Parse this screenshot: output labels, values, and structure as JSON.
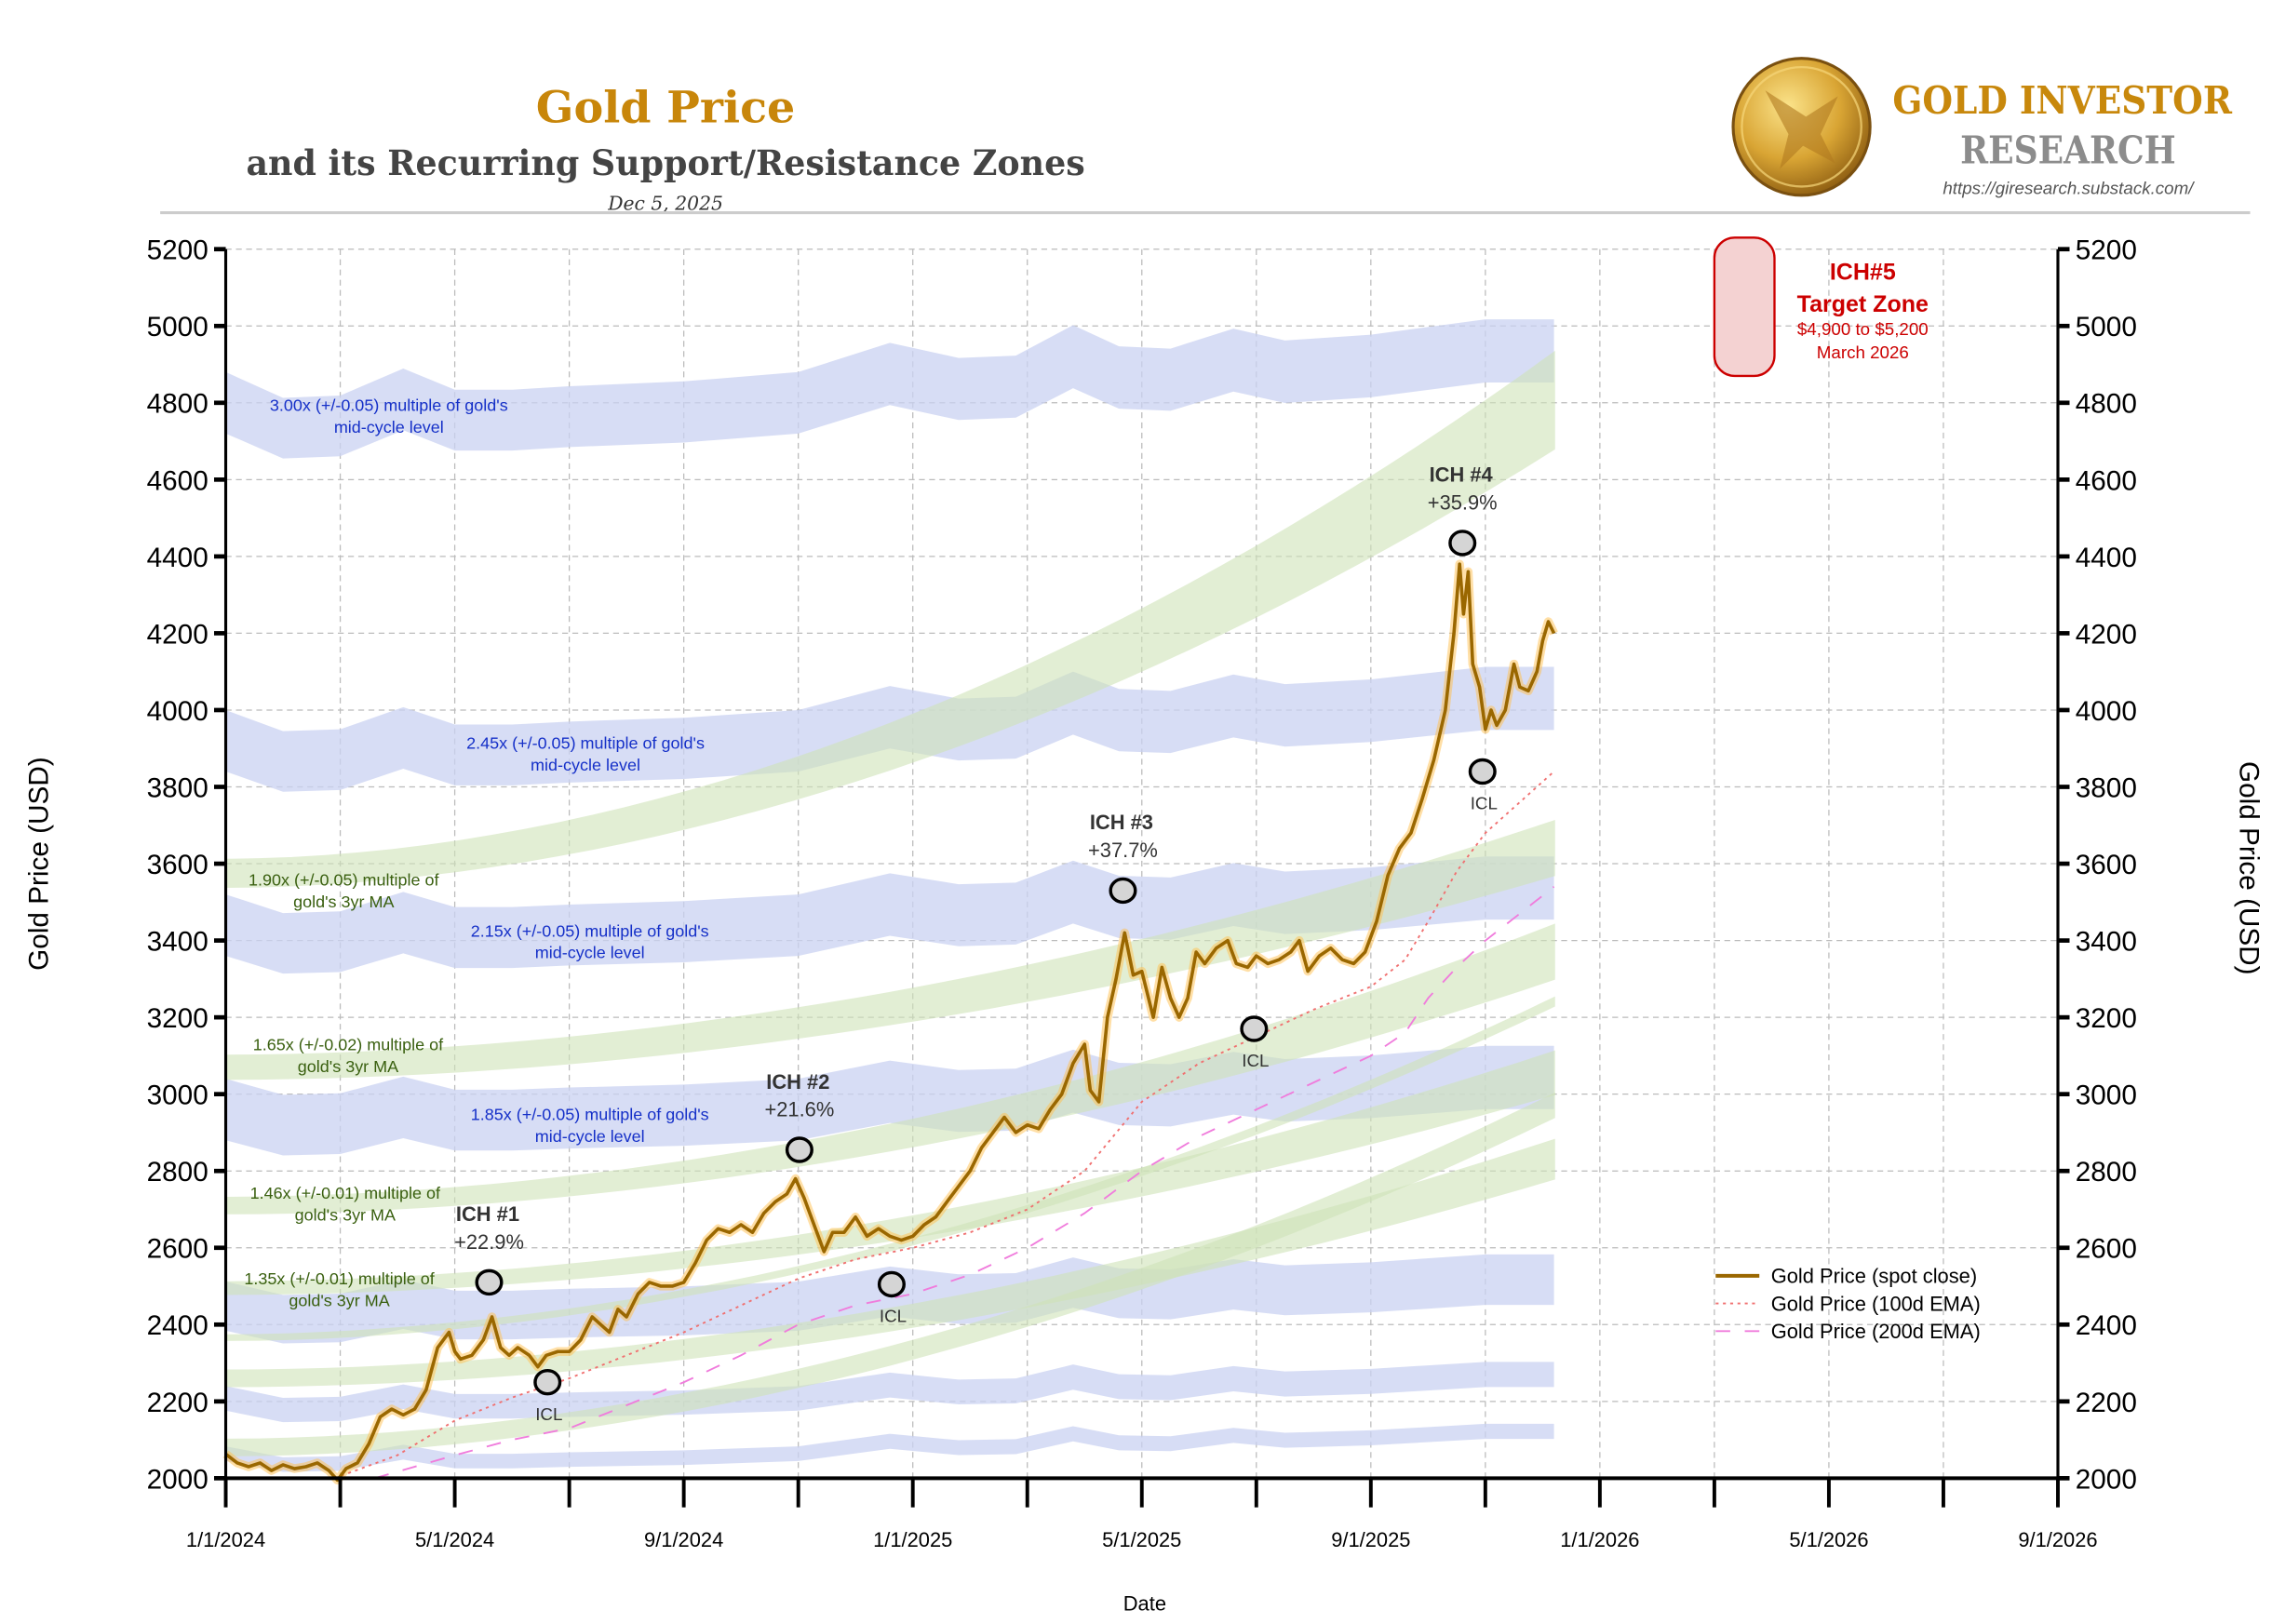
{
  "header": {
    "title": "Gold Price",
    "subtitle": "and its Recurring Support/Resistance Zones",
    "date": "Dec 5, 2025",
    "brand_line1": "GOLD INVESTOR",
    "brand_line2": "RESEARCH",
    "brand_url": "https://giresearch.substack.com/",
    "logo_icon": "gold-eagle-coin-icon"
  },
  "colors": {
    "title": "#C8860A",
    "subtitle": "#444444",
    "price": "#9A6700",
    "price_range": "#FFC04D",
    "ema100": "#F07070",
    "ema200": "#F07CDC",
    "blue_band": "#C9D2F2",
    "green_band": "#CFE3B8",
    "blue_label": "#1530C8",
    "green_label": "#3A6010",
    "target": "#CC0000"
  },
  "chart_data": {
    "type": "line",
    "xlabel": "Date",
    "ylabel_left": "Gold Price (USD)",
    "ylabel_right": "Gold Price (USD)",
    "x_unit": "months since 1/1/2024",
    "xlim": [
      0,
      32
    ],
    "ylim": [
      2000,
      5200
    ],
    "grid": true,
    "legend_position": "lower-right",
    "yticks": [
      2000,
      2200,
      2400,
      2600,
      2800,
      3000,
      3200,
      3400,
      3600,
      3800,
      4000,
      4200,
      4400,
      4600,
      4800,
      5000,
      5200
    ],
    "xtick_labels": [
      {
        "m": 0,
        "label": "1/1/2024"
      },
      {
        "m": 4,
        "label": "5/1/2024"
      },
      {
        "m": 8,
        "label": "9/1/2024"
      },
      {
        "m": 12,
        "label": "1/1/2025"
      },
      {
        "m": 16,
        "label": "5/1/2025"
      },
      {
        "m": 20,
        "label": "9/1/2025"
      },
      {
        "m": 24,
        "label": "1/1/2026"
      },
      {
        "m": 28,
        "label": "5/1/2026"
      },
      {
        "m": 32,
        "label": "9/1/2026"
      }
    ],
    "legend": [
      "Gold Price (spot close)",
      "Gold Price (100d EMA)",
      "Gold Price (200d EMA)"
    ],
    "series": [
      {
        "name": "Gold Price (spot close)",
        "points": [
          [
            0,
            2063
          ],
          [
            0.2,
            2040
          ],
          [
            0.4,
            2030
          ],
          [
            0.6,
            2040
          ],
          [
            0.8,
            2020
          ],
          [
            1.0,
            2035
          ],
          [
            1.2,
            2025
          ],
          [
            1.4,
            2030
          ],
          [
            1.6,
            2040
          ],
          [
            1.8,
            2020
          ],
          [
            1.95,
            1995
          ],
          [
            2.1,
            2025
          ],
          [
            2.3,
            2040
          ],
          [
            2.5,
            2090
          ],
          [
            2.7,
            2160
          ],
          [
            2.9,
            2180
          ],
          [
            3.1,
            2165
          ],
          [
            3.3,
            2180
          ],
          [
            3.5,
            2230
          ],
          [
            3.7,
            2340
          ],
          [
            3.9,
            2380
          ],
          [
            4.0,
            2330
          ],
          [
            4.1,
            2310
          ],
          [
            4.3,
            2320
          ],
          [
            4.5,
            2360
          ],
          [
            4.65,
            2420
          ],
          [
            4.8,
            2340
          ],
          [
            4.95,
            2320
          ],
          [
            5.1,
            2340
          ],
          [
            5.3,
            2320
          ],
          [
            5.45,
            2290
          ],
          [
            5.6,
            2320
          ],
          [
            5.8,
            2330
          ],
          [
            6.0,
            2330
          ],
          [
            6.2,
            2360
          ],
          [
            6.4,
            2420
          ],
          [
            6.55,
            2400
          ],
          [
            6.7,
            2380
          ],
          [
            6.85,
            2440
          ],
          [
            7.0,
            2420
          ],
          [
            7.2,
            2480
          ],
          [
            7.4,
            2510
          ],
          [
            7.6,
            2500
          ],
          [
            7.8,
            2500
          ],
          [
            8.0,
            2510
          ],
          [
            8.2,
            2560
          ],
          [
            8.4,
            2620
          ],
          [
            8.6,
            2650
          ],
          [
            8.8,
            2640
          ],
          [
            9.0,
            2660
          ],
          [
            9.2,
            2640
          ],
          [
            9.4,
            2690
          ],
          [
            9.6,
            2720
          ],
          [
            9.8,
            2740
          ],
          [
            9.95,
            2780
          ],
          [
            10.1,
            2730
          ],
          [
            10.3,
            2650
          ],
          [
            10.45,
            2590
          ],
          [
            10.6,
            2640
          ],
          [
            10.8,
            2640
          ],
          [
            11.0,
            2680
          ],
          [
            11.2,
            2630
          ],
          [
            11.4,
            2650
          ],
          [
            11.6,
            2630
          ],
          [
            11.8,
            2620
          ],
          [
            12.0,
            2630
          ],
          [
            12.2,
            2660
          ],
          [
            12.4,
            2680
          ],
          [
            12.6,
            2720
          ],
          [
            12.8,
            2760
          ],
          [
            13.0,
            2800
          ],
          [
            13.2,
            2860
          ],
          [
            13.4,
            2900
          ],
          [
            13.6,
            2940
          ],
          [
            13.8,
            2900
          ],
          [
            14.0,
            2920
          ],
          [
            14.2,
            2910
          ],
          [
            14.4,
            2960
          ],
          [
            14.6,
            3000
          ],
          [
            14.8,
            3080
          ],
          [
            15.0,
            3130
          ],
          [
            15.1,
            3010
          ],
          [
            15.25,
            2980
          ],
          [
            15.4,
            3200
          ],
          [
            15.55,
            3300
          ],
          [
            15.7,
            3420
          ],
          [
            15.85,
            3310
          ],
          [
            16.0,
            3320
          ],
          [
            16.2,
            3200
          ],
          [
            16.35,
            3330
          ],
          [
            16.5,
            3250
          ],
          [
            16.65,
            3200
          ],
          [
            16.8,
            3250
          ],
          [
            16.95,
            3370
          ],
          [
            17.1,
            3340
          ],
          [
            17.3,
            3380
          ],
          [
            17.5,
            3400
          ],
          [
            17.65,
            3340
          ],
          [
            17.85,
            3330
          ],
          [
            18.0,
            3360
          ],
          [
            18.2,
            3340
          ],
          [
            18.4,
            3350
          ],
          [
            18.6,
            3370
          ],
          [
            18.75,
            3400
          ],
          [
            18.9,
            3320
          ],
          [
            19.1,
            3360
          ],
          [
            19.3,
            3380
          ],
          [
            19.5,
            3350
          ],
          [
            19.7,
            3340
          ],
          [
            19.9,
            3370
          ],
          [
            20.1,
            3450
          ],
          [
            20.3,
            3570
          ],
          [
            20.5,
            3640
          ],
          [
            20.7,
            3680
          ],
          [
            20.9,
            3770
          ],
          [
            21.1,
            3870
          ],
          [
            21.3,
            4000
          ],
          [
            21.45,
            4200
          ],
          [
            21.55,
            4380
          ],
          [
            21.62,
            4250
          ],
          [
            21.7,
            4360
          ],
          [
            21.78,
            4120
          ],
          [
            21.9,
            4060
          ],
          [
            22.0,
            3950
          ],
          [
            22.1,
            4000
          ],
          [
            22.2,
            3960
          ],
          [
            22.35,
            4000
          ],
          [
            22.5,
            4120
          ],
          [
            22.6,
            4060
          ],
          [
            22.75,
            4050
          ],
          [
            22.9,
            4100
          ],
          [
            23.0,
            4180
          ],
          [
            23.1,
            4230
          ],
          [
            23.2,
            4200
          ]
        ]
      },
      {
        "name": "Gold Price (100d EMA)",
        "points": [
          [
            1.9,
            2000
          ],
          [
            3,
            2060
          ],
          [
            4,
            2150
          ],
          [
            5,
            2210
          ],
          [
            6,
            2260
          ],
          [
            7,
            2320
          ],
          [
            8,
            2380
          ],
          [
            9,
            2450
          ],
          [
            10,
            2520
          ],
          [
            11,
            2570
          ],
          [
            12,
            2600
          ],
          [
            13,
            2640
          ],
          [
            14,
            2700
          ],
          [
            15,
            2800
          ],
          [
            16,
            2980
          ],
          [
            17,
            3080
          ],
          [
            18,
            3150
          ],
          [
            19,
            3220
          ],
          [
            20,
            3280
          ],
          [
            20.6,
            3350
          ],
          [
            21,
            3450
          ],
          [
            21.5,
            3580
          ],
          [
            22,
            3680
          ],
          [
            22.6,
            3760
          ],
          [
            23.2,
            3840
          ]
        ]
      },
      {
        "name": "Gold Price (200d EMA)",
        "points": [
          [
            2.6,
            2000
          ],
          [
            4,
            2060
          ],
          [
            5,
            2100
          ],
          [
            6,
            2130
          ],
          [
            7,
            2190
          ],
          [
            8,
            2250
          ],
          [
            9,
            2320
          ],
          [
            10,
            2400
          ],
          [
            11,
            2450
          ],
          [
            12,
            2480
          ],
          [
            13,
            2530
          ],
          [
            14,
            2600
          ],
          [
            15,
            2690
          ],
          [
            16,
            2800
          ],
          [
            17,
            2890
          ],
          [
            18,
            2960
          ],
          [
            19,
            3030
          ],
          [
            20,
            3100
          ],
          [
            20.6,
            3160
          ],
          [
            21,
            3250
          ],
          [
            21.5,
            3330
          ],
          [
            22,
            3400
          ],
          [
            22.6,
            3470
          ],
          [
            23.2,
            3540
          ]
        ]
      }
    ],
    "mid_cycle_level": {
      "months": [
        0,
        1,
        2,
        3.1,
        4,
        5,
        6,
        8,
        10,
        11.6,
        12.8,
        13.8,
        14.8,
        15.6,
        16.5,
        17.6,
        18.5,
        20,
        22,
        23.2
      ],
      "values": [
        1600,
        1578,
        1580,
        1603,
        1585,
        1585,
        1588,
        1592,
        1600,
        1625,
        1612,
        1614,
        1640,
        1622,
        1620,
        1637,
        1627,
        1632,
        1645,
        1645
      ]
    },
    "blue_bands": [
      {
        "multiple": 3.0,
        "tol": 0.05,
        "label1": "3.00x (+/-0.05) multiple of gold's",
        "label2": "mid-cycle level"
      },
      {
        "multiple": 2.45,
        "tol": 0.05,
        "label1": "2.45x (+/-0.05) multiple of gold's",
        "label2": "mid-cycle level"
      },
      {
        "multiple": 2.15,
        "tol": 0.05,
        "label1": "2.15x (+/-0.05) multiple of gold's",
        "label2": "mid-cycle level"
      },
      {
        "multiple": 1.85,
        "tol": 0.05,
        "label1": "1.85x (+/-0.05) multiple of gold's",
        "label2": "mid-cycle level"
      },
      {
        "multiple": 1.53,
        "tol": 0.04
      },
      {
        "multiple": 1.38,
        "tol": 0.02
      },
      {
        "multiple": 1.29,
        "tol": 0.012
      }
    ],
    "green_bands": [
      {
        "start": [
          3540,
          3610
        ],
        "end": [
          4680,
          4930
        ],
        "label1": "1.90x (+/-0.05) multiple of",
        "label2": "gold's 3yr MA"
      },
      {
        "start": [
          3040,
          3100
        ],
        "end": [
          3570,
          3710
        ],
        "label1": "1.65x (+/-0.02) multiple of",
        "label2": "gold's 3yr MA"
      },
      {
        "start": [
          2690,
          2730
        ],
        "end": [
          3300,
          3440
        ],
        "label1": "1.46x (+/-0.01) multiple of",
        "label2": "gold's 3yr MA"
      },
      {
        "start": [
          2480,
          2510
        ],
        "end": [
          3000,
          3110
        ],
        "label1": "1.35x (+/-0.01) multiple of",
        "label2": "gold's 3yr MA"
      },
      {
        "start": [
          2360,
          2372
        ],
        "end": [
          3230,
          3250
        ]
      },
      {
        "start": [
          2240,
          2280
        ],
        "end": [
          2780,
          2880
        ]
      },
      {
        "start": [
          2060,
          2100
        ],
        "end": [
          2940,
          3000
        ]
      }
    ],
    "cycle_markers": [
      {
        "type": "ICH",
        "m": 4.6,
        "price": 2510,
        "label": "ICH #1",
        "gain": "+22.9%"
      },
      {
        "type": "ICL",
        "m": 5.62,
        "price": 2250,
        "label": "ICL"
      },
      {
        "type": "ICH",
        "m": 10.02,
        "price": 2855,
        "label": "ICH #2",
        "gain": "+21.6%"
      },
      {
        "type": "ICL",
        "m": 11.63,
        "price": 2505,
        "label": "ICL"
      },
      {
        "type": "ICH",
        "m": 15.67,
        "price": 3530,
        "label": "ICH #3",
        "gain": "+37.7%"
      },
      {
        "type": "ICL",
        "m": 17.96,
        "price": 3170,
        "label": "ICL"
      },
      {
        "type": "ICH",
        "m": 21.6,
        "price": 4435,
        "label": "ICH #4",
        "gain": "+35.9%"
      },
      {
        "type": "ICL",
        "m": 21.95,
        "price": 3840,
        "label": "ICL"
      }
    ],
    "target_zone": {
      "title": "ICH#5",
      "subtitle": "Target Zone",
      "range": "$4,900 to $5,200",
      "when": "March 2026",
      "m_range": [
        26.0,
        27.05
      ],
      "price_range": [
        4870,
        5230
      ]
    }
  }
}
